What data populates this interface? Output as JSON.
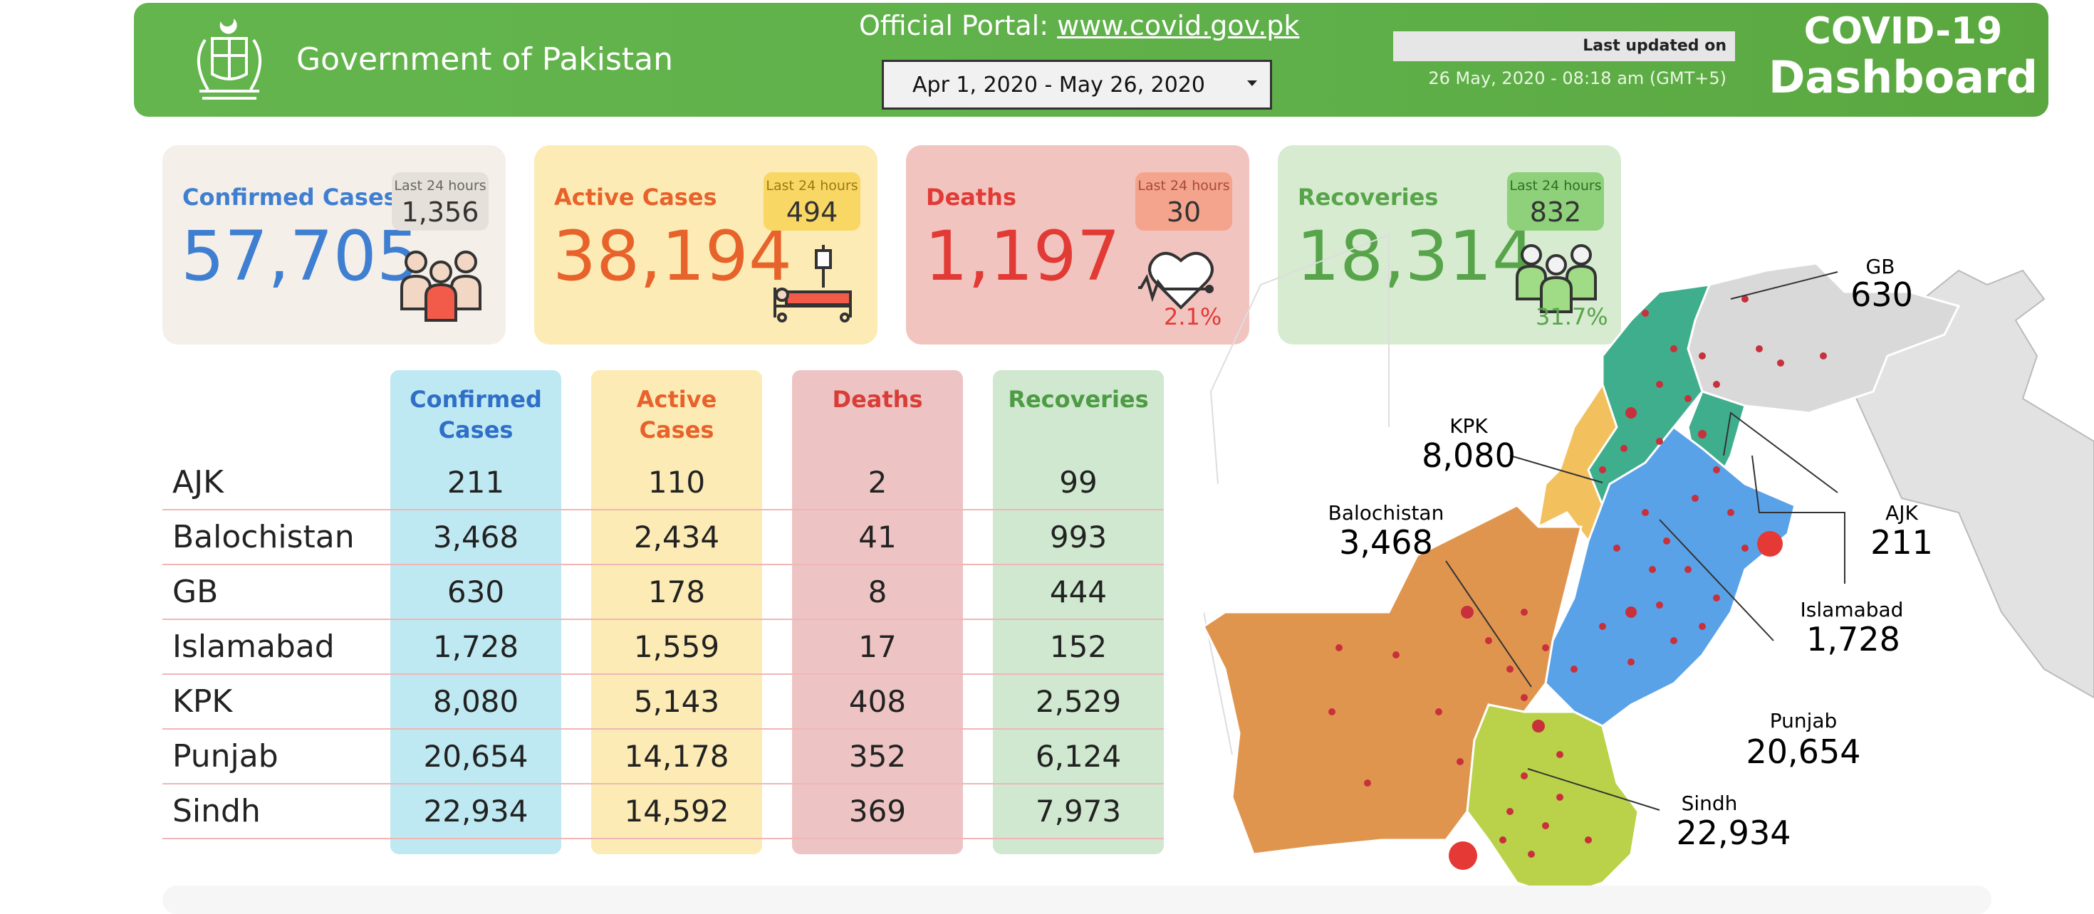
{
  "header": {
    "gov_title": "Government of Pakistan",
    "portal_label": "Official Portal: ",
    "portal_link": "www.covid.gov.pk",
    "date_range": "Apr 1, 2020 - May 26, 2020",
    "last_updated_label": "Last updated on",
    "last_updated_time": "26 May, 2020 - 08:18 am (GMT+5)",
    "dashboard_title_line1": "COVID-19",
    "dashboard_title_line2": "Dashboard",
    "emblem_icon": "state-emblem-icon"
  },
  "kpis": {
    "chip_caption": "Last 24 hours",
    "confirmed": {
      "label": "Confirmed Cases",
      "value": "57,705",
      "last24": "1,356",
      "icon": "people-group-icon"
    },
    "active": {
      "label": "Active Cases",
      "value": "38,194",
      "last24": "494",
      "icon": "hospital-bed-icon"
    },
    "deaths": {
      "label": "Deaths",
      "value": "1,197",
      "last24": "30",
      "pct": "2.1%",
      "icon": "heartbeat-icon"
    },
    "recoveries": {
      "label": "Recoveries",
      "value": "18,314",
      "last24": "832",
      "pct": "31.7%",
      "icon": "recovered-people-icon"
    }
  },
  "table": {
    "headers": {
      "confirmed": [
        "Confirmed",
        "Cases"
      ],
      "active": [
        "Active",
        "Cases"
      ],
      "deaths": "Deaths",
      "recoveries": "Recoveries"
    },
    "rows": [
      {
        "region": "AJK",
        "confirmed": "211",
        "active": "110",
        "deaths": "2",
        "recoveries": "99"
      },
      {
        "region": "Balochistan",
        "confirmed": "3,468",
        "active": "2,434",
        "deaths": "41",
        "recoveries": "993"
      },
      {
        "region": "GB",
        "confirmed": "630",
        "active": "178",
        "deaths": "8",
        "recoveries": "444"
      },
      {
        "region": "Islamabad",
        "confirmed": "1,728",
        "active": "1,559",
        "deaths": "17",
        "recoveries": "152"
      },
      {
        "region": "KPK",
        "confirmed": "8,080",
        "active": "5,143",
        "deaths": "408",
        "recoveries": "2,529"
      },
      {
        "region": "Punjab",
        "confirmed": "20,654",
        "active": "14,178",
        "deaths": "352",
        "recoveries": "6,124"
      },
      {
        "region": "Sindh",
        "confirmed": "22,934",
        "active": "14,592",
        "deaths": "369",
        "recoveries": "7,973"
      }
    ]
  },
  "map": {
    "labels": {
      "gb": {
        "name": "GB",
        "value": "630"
      },
      "kpk": {
        "name": "KPK",
        "value": "8,080"
      },
      "balochistan": {
        "name": "Balochistan",
        "value": "3,468"
      },
      "ajk": {
        "name": "AJK",
        "value": "211"
      },
      "islamabad": {
        "name": "Islamabad",
        "value": "1,728"
      },
      "punjab": {
        "name": "Punjab",
        "value": "20,654"
      },
      "sindh": {
        "name": "Sindh",
        "value": "22,934"
      }
    },
    "colors": {
      "balochistan": "#e0954f",
      "sindh": "#b9d24a",
      "punjab": "#5aa2e8",
      "kpk": "#f2c15e",
      "gb": "#d9d9d9",
      "ajk": "#3fae8c",
      "neighbor": "#d0d0d0"
    }
  },
  "colors": {
    "header_green": "#5fb04a",
    "confirmed_blue": "#3f7fd1",
    "active_orange": "#e8622b",
    "deaths_red": "#e23a34",
    "recoveries_green": "#58a44a"
  }
}
